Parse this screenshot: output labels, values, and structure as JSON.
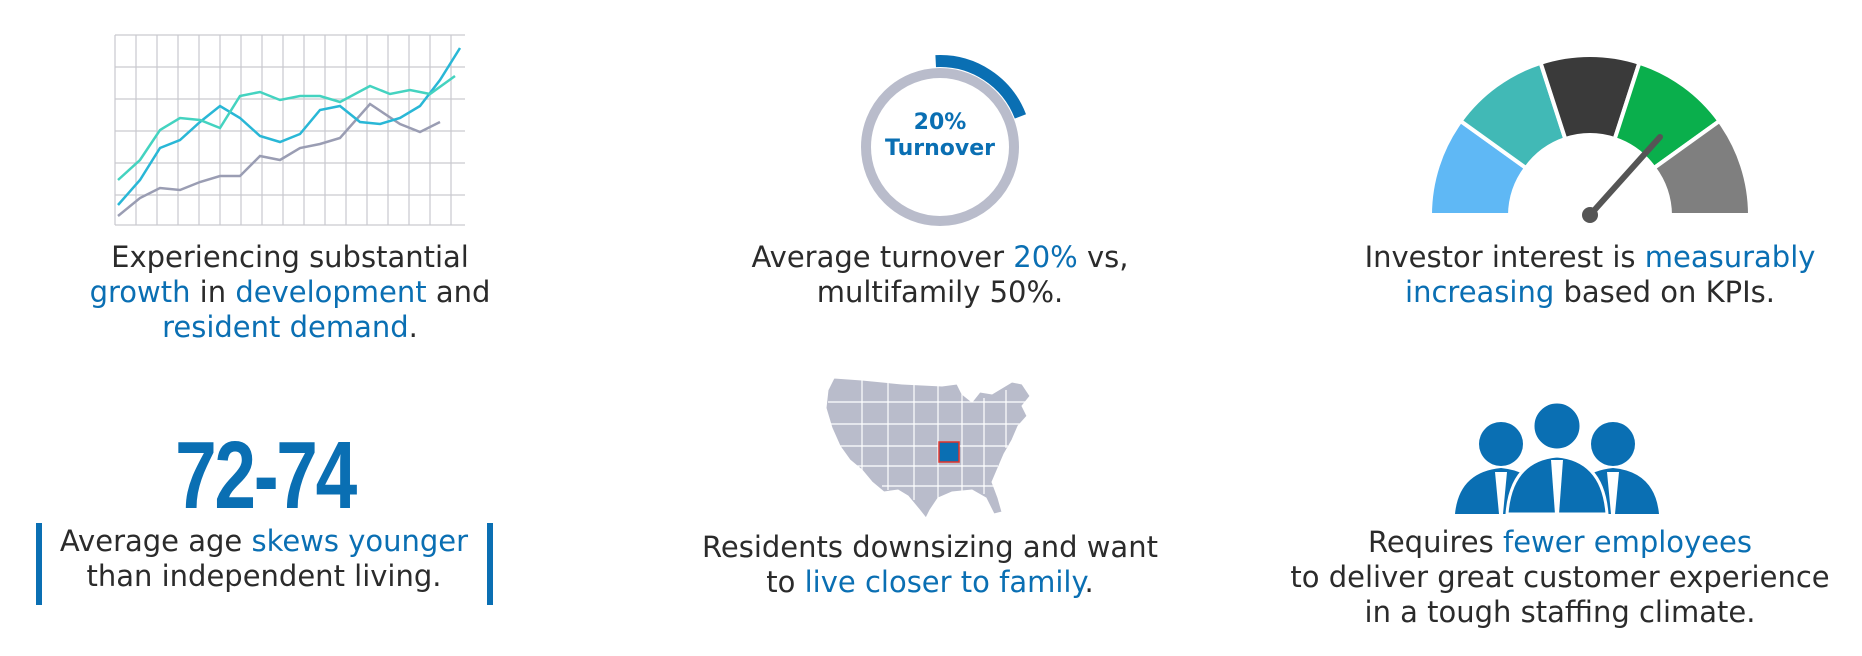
{
  "growth": {
    "caption_plain1": "Experiencing substantial",
    "caption_hl1": "growth",
    "caption_plain2": " in ",
    "caption_hl2": "development",
    "caption_plain3": " and",
    "caption_hl3": "resident demand",
    "caption_plain4": "."
  },
  "turnover": {
    "ring_label_pct": "20%",
    "ring_label_word": "Turnover",
    "ring_fraction": 0.2,
    "caption_plain1": "Average turnover ",
    "caption_hl1": "20%",
    "caption_plain2": " vs,",
    "caption_line2": "multifamily 50%."
  },
  "investor": {
    "caption_plain1": "Investor interest is ",
    "caption_hl1": "measurably",
    "caption_hl2": "increasing",
    "caption_plain2": " based on KPIs."
  },
  "age": {
    "big_number": "72-74",
    "caption_plain1": "Average age ",
    "caption_hl1": "skews younger",
    "caption_line2": "than independent living."
  },
  "downsizing": {
    "caption_line1": "Residents downsizing and want",
    "caption_plain1": "to ",
    "caption_hl1": "live closer to family",
    "caption_plain2": "."
  },
  "staffing": {
    "caption_plain1": "Requires ",
    "caption_hl1": "fewer employees",
    "caption_line2": "to deliver great customer experience",
    "caption_line3": "in a tough staffing climate."
  },
  "colors": {
    "accent_blue": "#0a6fb3",
    "ring_gray": "#b9bccb",
    "gauge_light_blue": "#5fb8f5",
    "gauge_teal": "#41b9b6",
    "gauge_dark": "#3a3a3a",
    "gauge_green": "#0aaf4c",
    "gauge_gray": "#7f7f7f"
  },
  "icons": [
    "line-chart-icon",
    "ring-progress-icon",
    "gauge-icon",
    "us-map-icon",
    "people-icon"
  ]
}
